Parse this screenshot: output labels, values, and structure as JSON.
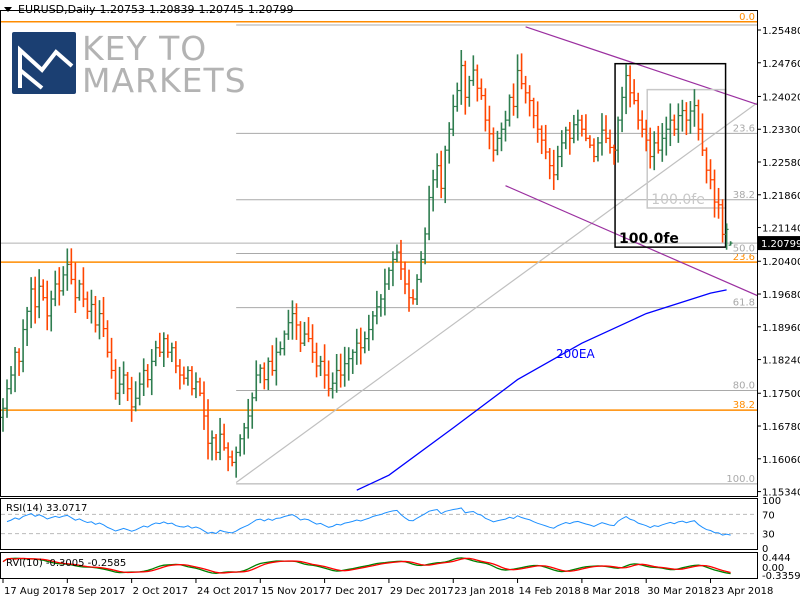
{
  "header": {
    "symbol": "EURUSD,Daily",
    "open": "1.20753",
    "high": "1.20839",
    "low": "1.20745",
    "close": "1.20799"
  },
  "logo": {
    "line1": "KEY TO",
    "line2": "MARKETS",
    "color": "#1b3f72"
  },
  "chart_data": {
    "type": "ohlc",
    "instrument": "EURUSD",
    "timeframe": "Daily",
    "colors": {
      "up": "#2e7d4f",
      "down": "#ff4500",
      "ema": "#0000ff",
      "channel": "#9b30a0",
      "fib_orange": "#ff8c00",
      "fib_gray": "#a9a9a9"
    },
    "last_bar": {
      "open": 1.20753,
      "high": 1.20839,
      "low": 1.20745,
      "close": 1.20799
    },
    "current_price_label": "1.20799",
    "closes": [
      1.1717,
      1.176,
      1.179,
      1.184,
      1.182,
      1.189,
      1.193,
      1.1979,
      1.194,
      1.1985,
      1.196,
      1.192,
      1.1957,
      1.199,
      1.1975,
      1.201,
      1.2033,
      1.2,
      1.196,
      1.199,
      1.1957,
      1.193,
      1.1945,
      1.19,
      1.1925,
      1.1892,
      1.184,
      1.18,
      1.175,
      1.177,
      1.179,
      1.176,
      1.172,
      1.1739,
      1.177,
      1.18,
      1.178,
      1.182,
      1.185,
      1.184,
      1.187,
      1.184,
      1.185,
      1.181,
      1.179,
      1.1783,
      1.18,
      1.176,
      1.1775,
      1.175,
      1.17,
      1.164,
      1.1652,
      1.162,
      1.166,
      1.163,
      1.161,
      1.1598,
      1.162,
      1.165,
      1.1674,
      1.17,
      1.174,
      1.179,
      1.1805,
      1.178,
      1.182,
      1.18,
      1.184,
      1.1848,
      1.188,
      1.1905,
      1.1925,
      1.19,
      1.186,
      1.188,
      1.187,
      1.184,
      1.181,
      1.182,
      1.179,
      1.176,
      1.1772,
      1.18,
      1.179,
      1.1815,
      1.1826,
      1.184,
      1.186,
      1.185,
      1.187,
      1.189,
      1.192,
      1.194,
      1.1957,
      1.199,
      1.202,
      1.2044,
      1.206,
      1.2023,
      1.199,
      1.196,
      1.1957,
      1.2,
      1.2044,
      1.21,
      1.218,
      1.2219,
      1.225,
      1.22,
      1.2284,
      1.233,
      1.238,
      1.2415,
      1.247,
      1.24,
      1.2437,
      1.246,
      1.242,
      1.2404,
      1.235,
      1.232,
      1.2284,
      1.231,
      1.233,
      1.235,
      1.24,
      1.238,
      1.2459,
      1.243,
      1.241,
      1.2393,
      1.236,
      1.233,
      1.2306,
      1.228,
      1.225,
      1.223,
      1.227,
      1.23,
      1.2328,
      1.231,
      1.234,
      1.235,
      1.233,
      1.231,
      1.2295,
      1.227,
      1.23,
      1.2328,
      1.231,
      1.229,
      1.2284,
      1.235,
      1.24,
      1.2448,
      1.241,
      1.2393,
      1.235,
      1.233,
      1.2306,
      1.227,
      1.23,
      1.2284,
      1.231,
      1.233,
      1.235,
      1.233,
      1.236,
      1.2371,
      1.235,
      1.237,
      1.2382,
      1.233,
      1.2284,
      1.224,
      1.2219,
      1.217,
      1.2164,
      1.2099,
      1.211,
      1.20799
    ],
    "price_axis": {
      "ticks": [
        "1.25480",
        "1.24760",
        "1.24020",
        "1.23300",
        "1.22580",
        "1.21860",
        "1.21140",
        "1.20400",
        "1.19680",
        "1.18960",
        "1.18240",
        "1.17500",
        "1.16780",
        "1.16060",
        "1.15340"
      ]
    },
    "x_axis": {
      "labels": [
        "17 Aug 2017",
        "8 Sep 2017",
        "2 Oct 2017",
        "24 Oct 2017",
        "15 Nov 2017",
        "7 Dec 2017",
        "29 Dec 2017",
        "23 Jan 2018",
        "14 Feb 2018",
        "8 Mar 2018",
        "30 Mar 2018",
        "23 Apr 2018"
      ]
    },
    "ema200": {
      "label": "200EA",
      "points": [
        [
          "19 Dec 2017",
          1.1537
        ],
        [
          "29 Dec 2017",
          1.157
        ],
        [
          "23 Jan 2018",
          1.1674
        ],
        [
          "14 Feb 2018",
          1.178
        ],
        [
          "8 Mar 2018",
          1.186
        ],
        [
          "30 Mar 2018",
          1.1925
        ],
        [
          "23 Apr 2018",
          1.197
        ],
        [
          "27 Apr 2018",
          1.1977
        ]
      ]
    },
    "fib_orange": {
      "levels": [
        {
          "label": "0.0",
          "price": 1.2566
        },
        {
          "label": "23.6",
          "price": 1.2038
        },
        {
          "label": "38.2",
          "price": 1.1713
        }
      ]
    },
    "fib_gray": {
      "from": "7 Nov 2017",
      "levels": [
        {
          "label": "0.0",
          "price": 1.2559
        },
        {
          "label": "23.6",
          "price": 1.2321
        },
        {
          "label": "38.2",
          "price": 1.2175
        },
        {
          "label": "50.0",
          "price": 1.2057
        },
        {
          "label": "61.8",
          "price": 1.1938
        },
        {
          "label": "80.0",
          "price": 1.1756
        },
        {
          "label": "100.0",
          "price": 1.1551
        }
      ]
    },
    "trendline_gray": [
      [
        "7 Nov 2017",
        1.1554
      ],
      [
        "27 Apr 2018",
        1.2339
      ]
    ],
    "channel_upper": [
      [
        "16 Feb 2018",
        1.2555
      ],
      [
        "27 Apr 2018",
        1.2407
      ]
    ],
    "channel_lower": [
      [
        "9 Feb 2018",
        1.2206
      ],
      [
        "27 Apr 2018",
        1.1994
      ]
    ],
    "fe_box_black": {
      "from": "21 Mar 2018",
      "to": "26 Apr 2018",
      "top": 1.2474,
      "bottom": 1.2071,
      "label": "100.0fe"
    },
    "fe_box_gray": {
      "from": "2 Apr 2018",
      "to": "26 Apr 2018",
      "top": 1.2417,
      "bottom": 1.2157,
      "label": "100.0fe"
    },
    "rsi": {
      "label": "RSI(14) 33.0717",
      "period": 14,
      "axis": [
        "100",
        "70",
        "30",
        "0"
      ],
      "levels": [
        70,
        30
      ],
      "color": "#1e90ff"
    },
    "rvi": {
      "label": "RVI(10) -0.3005 -0.2585",
      "period": 10,
      "axis": [
        "0.444",
        "0.00",
        "-0.3359"
      ],
      "range": [
        -0.3359,
        0.444
      ],
      "colors": {
        "main": "#008000",
        "signal": "#ff0000"
      }
    }
  }
}
